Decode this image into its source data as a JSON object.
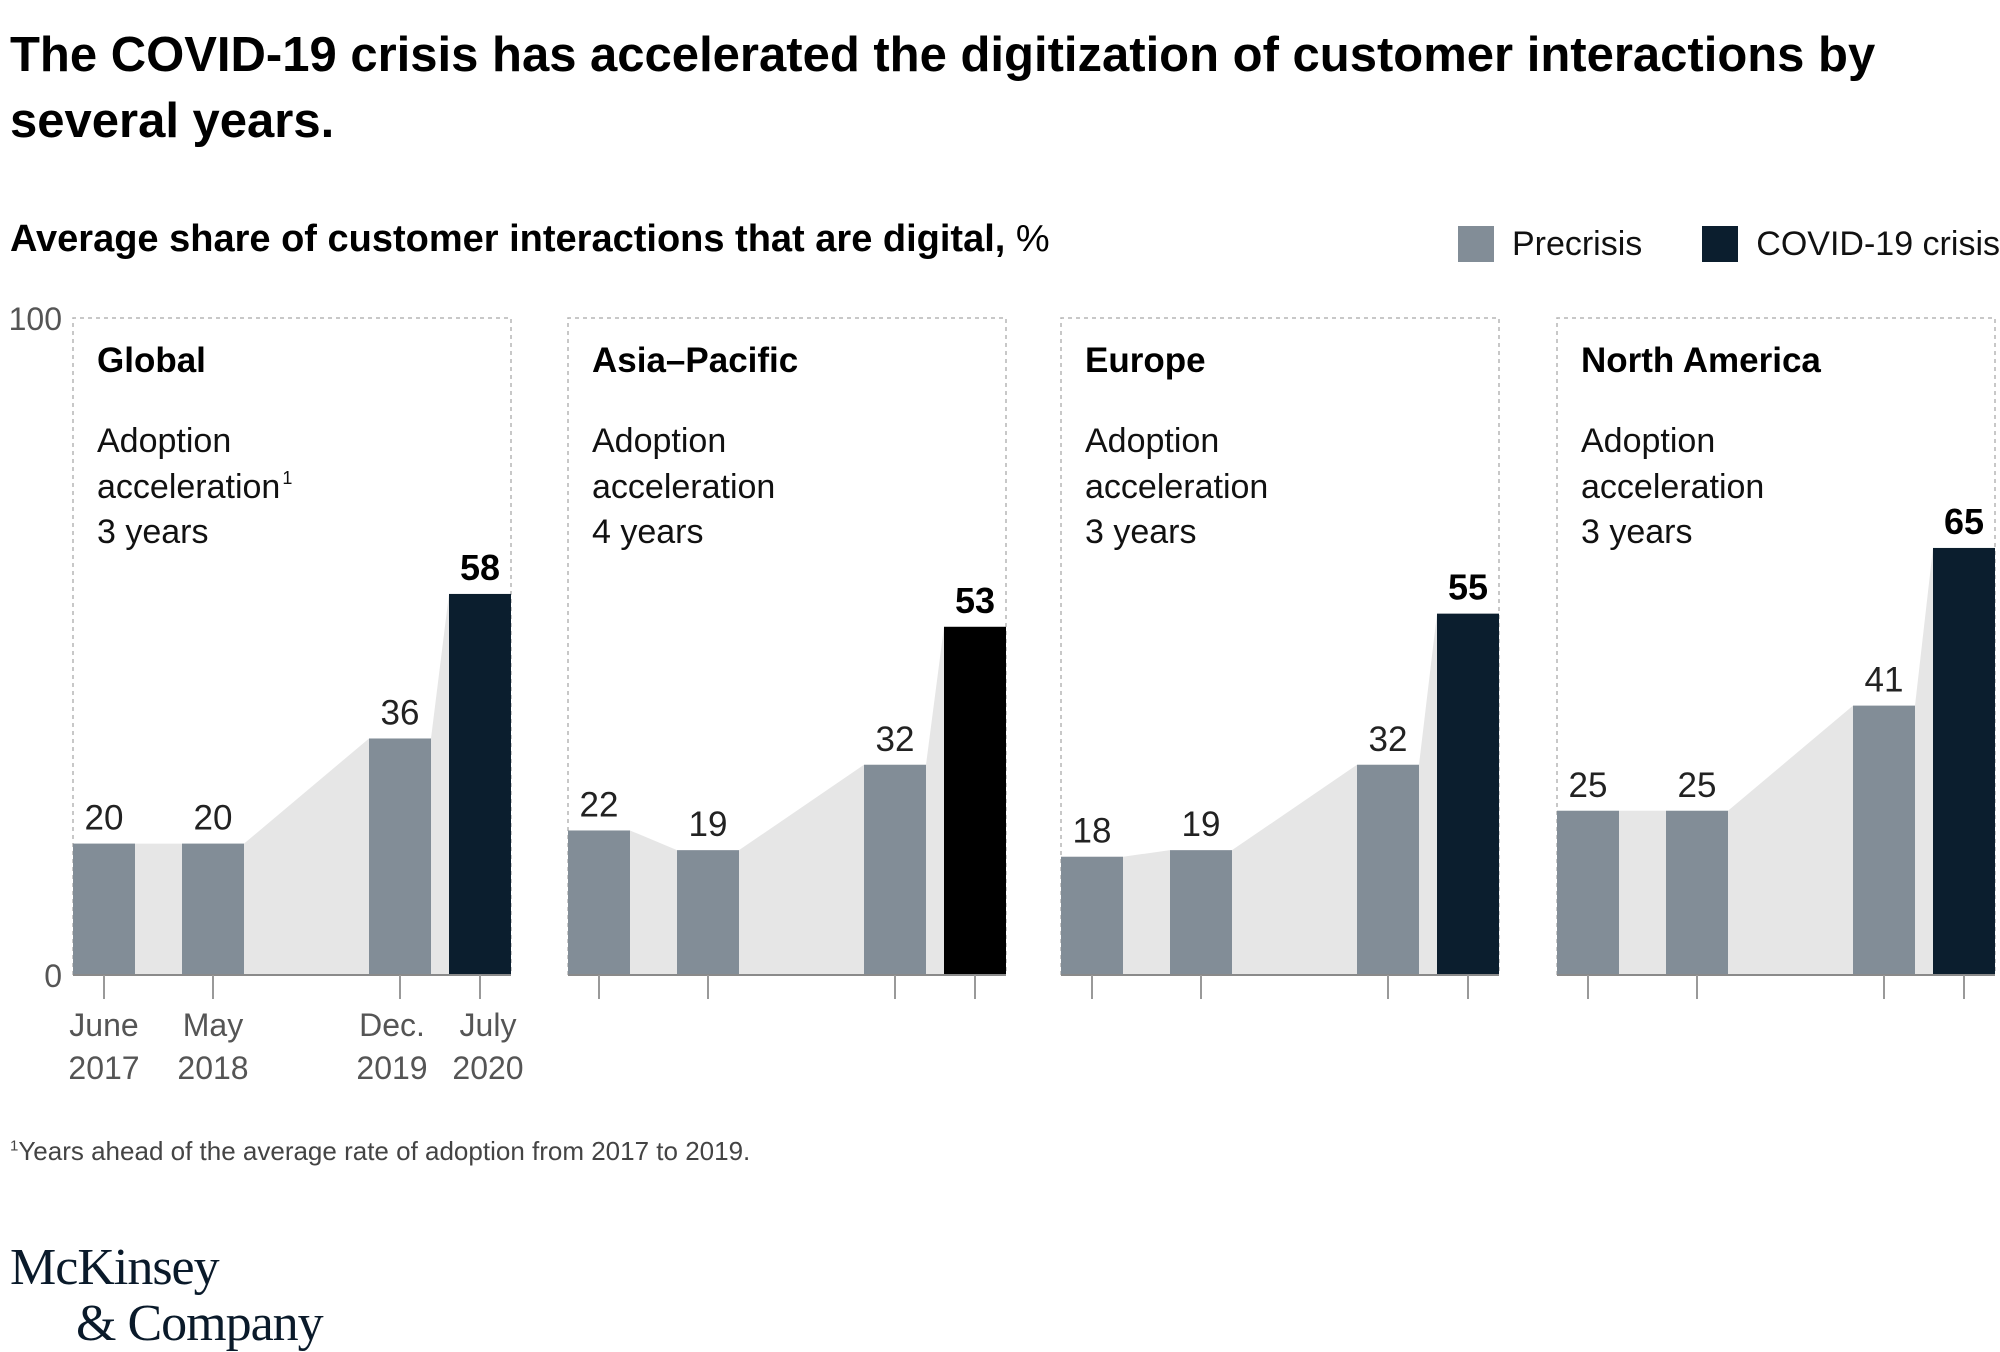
{
  "title": "The COVID-19 crisis has accelerated the digitization of customer interactions by several years.",
  "subtitle": {
    "bold": "Average share of customer interactions that are digital,",
    "unit": "%"
  },
  "legend": {
    "precrisis_label": "Precrisis",
    "covid_label": "COVID-19 crisis"
  },
  "colors": {
    "precrisis": "#828d97",
    "covid": "#0b1e2e",
    "covid_asia": "#000000",
    "area": "#e6e6e6",
    "frame": "#b5b5b5"
  },
  "chart_data": {
    "type": "bar",
    "ylim": [
      0,
      100
    ],
    "yticks": [
      "0",
      "100"
    ],
    "x_labels": [
      {
        "line1": "June",
        "line2": "2017"
      },
      {
        "line1": "May",
        "line2": "2018"
      },
      {
        "line1": "Dec.",
        "line2": "2019"
      },
      {
        "line1": "July",
        "line2": "2020"
      }
    ],
    "series": [
      {
        "name": "Precrisis",
        "points": [
          "June 2017",
          "May 2018",
          "Dec. 2019"
        ]
      },
      {
        "name": "COVID-19 crisis",
        "points": [
          "July 2020"
        ]
      }
    ],
    "panels": [
      {
        "name": "Global",
        "adoption_label": "Adoption",
        "adoption_label2": "acceleration",
        "footnote_mark": "1",
        "years": "3 years",
        "values": [
          20,
          20,
          36,
          58
        ]
      },
      {
        "name": "Asia–Pacific",
        "adoption_label": "Adoption",
        "adoption_label2": "acceleration",
        "footnote_mark": "",
        "years": "4 years",
        "values": [
          22,
          19,
          32,
          53
        ]
      },
      {
        "name": "Europe",
        "adoption_label": "Adoption",
        "adoption_label2": "acceleration",
        "footnote_mark": "",
        "years": "3 years",
        "values": [
          18,
          19,
          32,
          55
        ]
      },
      {
        "name": "North America",
        "adoption_label": "Adoption",
        "adoption_label2": "acceleration",
        "footnote_mark": "",
        "years": "3 years",
        "values": [
          25,
          25,
          41,
          65
        ]
      }
    ]
  },
  "footnote": {
    "mark": "1",
    "text": "Years ahead of the average rate of adoption from 2017 to 2019."
  },
  "logo": {
    "line1": "McKinsey",
    "line2": "& Company"
  }
}
